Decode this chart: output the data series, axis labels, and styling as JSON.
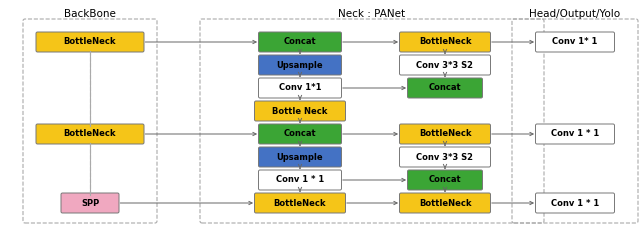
{
  "title_backbone": "BackBone",
  "title_neck": "Neck : PANet",
  "title_head": "Head/Output/Yolo",
  "color_yellow": "#F5C518",
  "color_green": "#3BA535",
  "color_blue": "#4472C4",
  "color_white": "#FFFFFF",
  "color_pink": "#F0A8C0",
  "color_gray_border": "#888888",
  "color_dashed": "#999999",
  "figsize": [
    6.4,
    2.34
  ],
  "dpi": 100
}
